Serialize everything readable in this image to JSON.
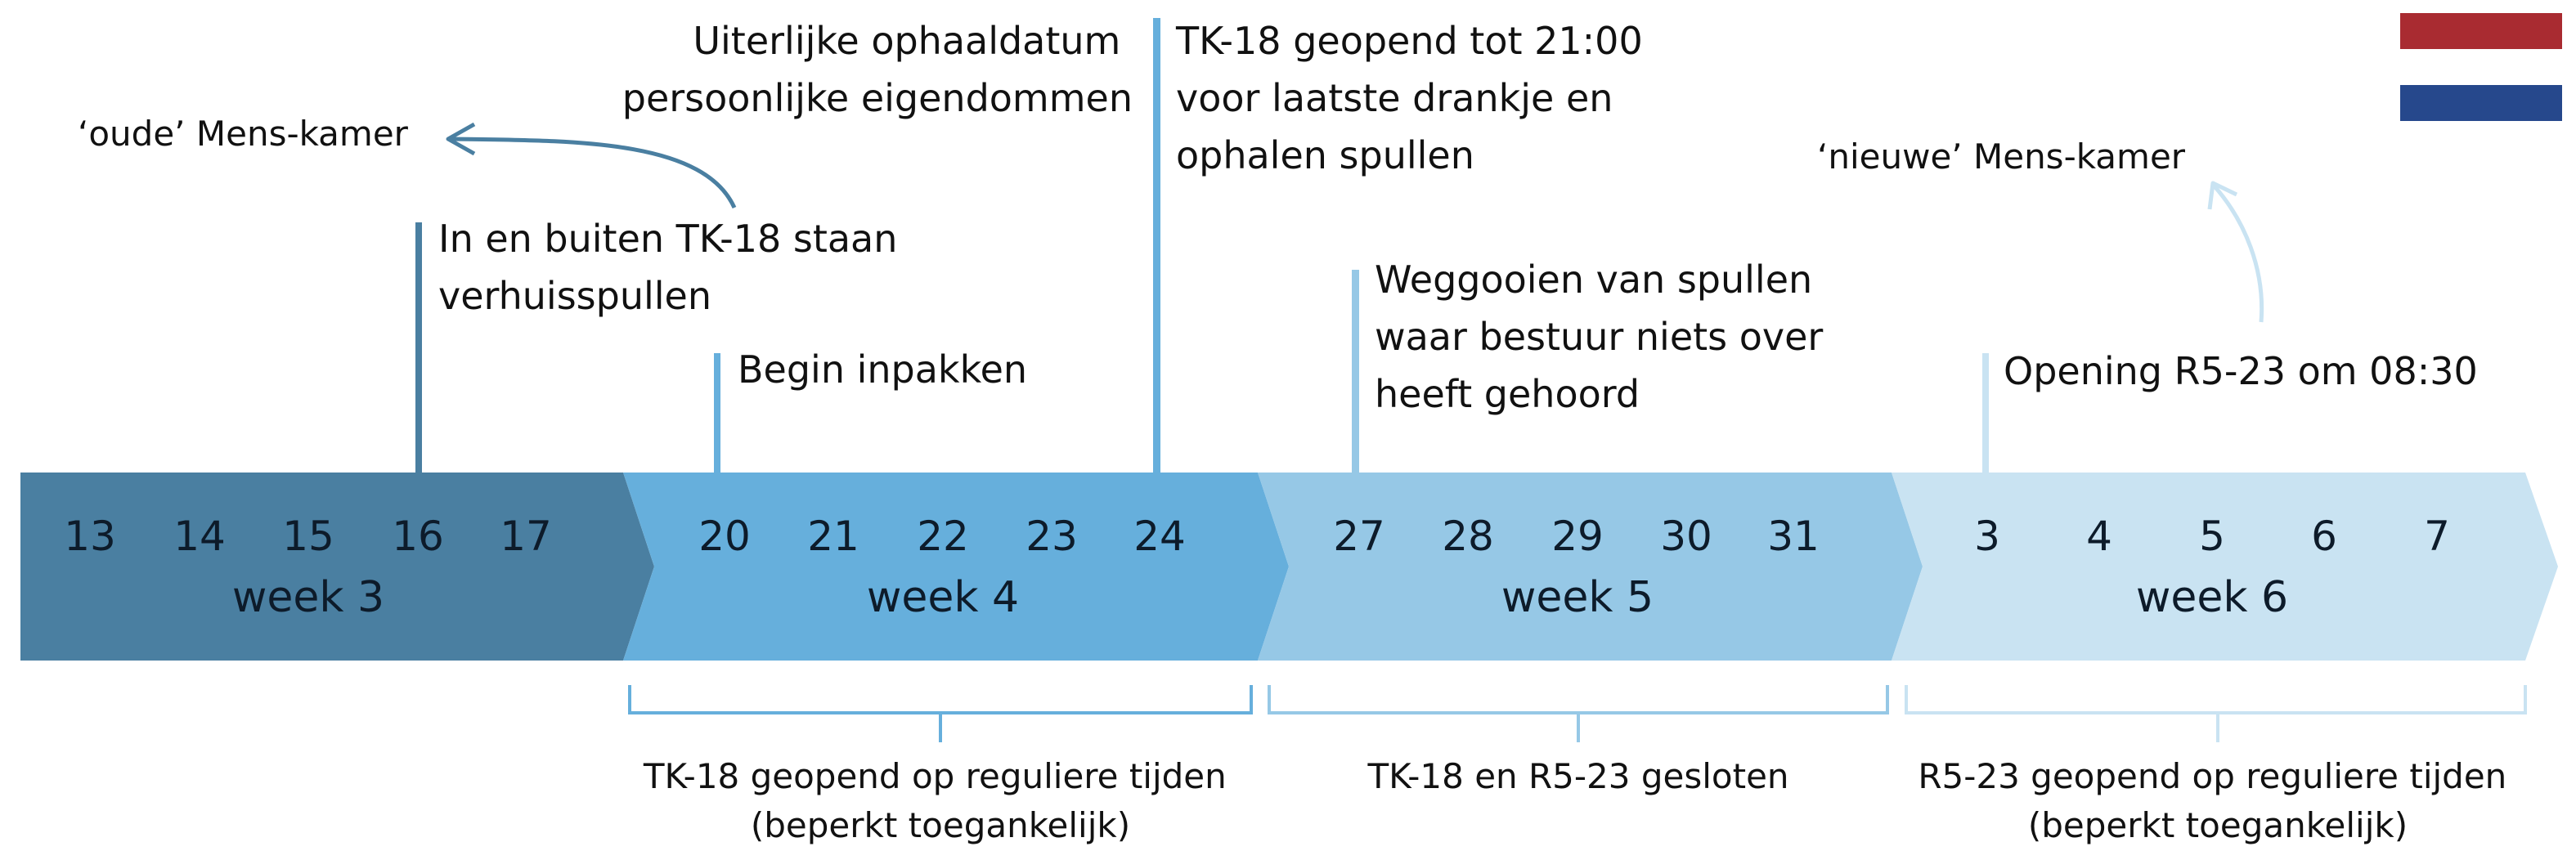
{
  "colors": {
    "week3": "#4a7fa1",
    "week4": "#66afdc",
    "week5": "#96c8e6",
    "week6": "#c9e3f2",
    "flag_red": "#a92b31",
    "flag_blue": "#26488c",
    "text": "#111111"
  },
  "icons": {
    "flag": "dutch-flag-icon",
    "arrow_left": "curved-arrow-left-icon",
    "arrow_up": "curved-arrow-up-icon"
  },
  "weeks": [
    {
      "label": "week 3",
      "days": [
        "13",
        "14",
        "15",
        "16",
        "17"
      ]
    },
    {
      "label": "week 4",
      "days": [
        "20",
        "21",
        "22",
        "23",
        "24"
      ]
    },
    {
      "label": "week 5",
      "days": [
        "27",
        "28",
        "29",
        "30",
        "31"
      ]
    },
    {
      "label": "week 6",
      "days": [
        "3",
        "4",
        "5",
        "6",
        "7"
      ]
    }
  ],
  "events": [
    {
      "lines": [
        "In en buiten TK-18 staan",
        "verhuisspullen"
      ]
    },
    {
      "lines": [
        "Begin inpakken"
      ]
    },
    {
      "lines": [
        "Uiterlijke ophaaldatum",
        "persoonlijke eigendommen"
      ]
    },
    {
      "lines": [
        "TK-18 geopend tot 21:00",
        "voor laatste drankje en",
        "ophalen spullen"
      ]
    },
    {
      "lines": [
        "Weggooien van spullen",
        "waar bestuur niets over",
        "heeft gehoord"
      ]
    },
    {
      "lines": [
        "Opening R5-23 om 08:30"
      ]
    }
  ],
  "rooms": {
    "old": "‘oude’ Mens-kamer",
    "new": "‘nieuwe’ Mens-kamer"
  },
  "periods": [
    {
      "lines": [
        "TK-18 geopend op reguliere tijden",
        "(beperkt toegankelijk)"
      ]
    },
    {
      "lines": [
        "TK-18 en R5-23 gesloten"
      ]
    },
    {
      "lines": [
        "R5-23 geopend op reguliere tijden",
        "(beperkt toegankelijk)"
      ]
    }
  ]
}
